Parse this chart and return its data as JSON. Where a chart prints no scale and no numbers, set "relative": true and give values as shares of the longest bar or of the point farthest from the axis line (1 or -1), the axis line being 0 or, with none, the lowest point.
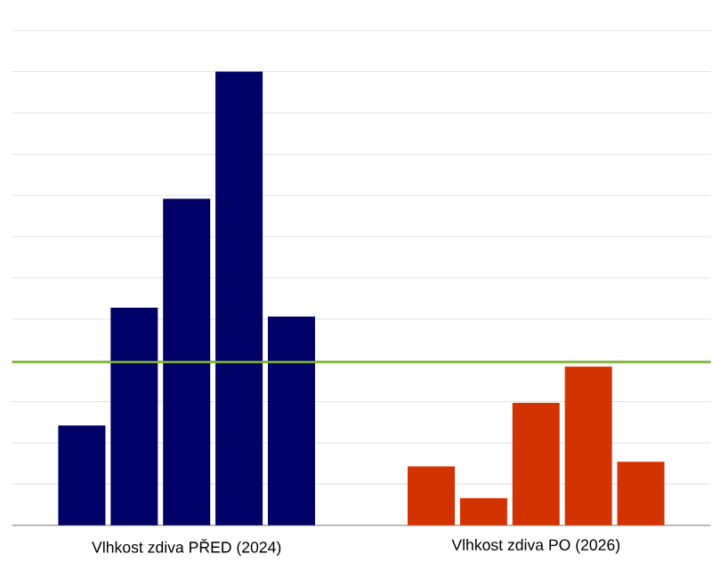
{
  "chart_data": {
    "type": "bar",
    "relative": true,
    "grid": "y",
    "categories": [
      "Vlhkost zdiva PŘED (2024)",
      "Vlhkost zdiva PO (2026)"
    ],
    "series": [
      {
        "colors": [
          "#000066",
          "#d33300"
        ],
        "values": [
          0.22,
          0.13
        ]
      },
      {
        "colors": [
          "#000066",
          "#d33300"
        ],
        "values": [
          0.48,
          0.06
        ]
      },
      {
        "colors": [
          "#000066",
          "#d33300"
        ],
        "values": [
          0.72,
          0.27
        ]
      },
      {
        "colors": [
          "#000066",
          "#d33300"
        ],
        "values": [
          1.0,
          0.35
        ]
      },
      {
        "colors": [
          "#000066",
          "#d33300"
        ],
        "values": [
          0.46,
          0.14
        ]
      }
    ],
    "ref_lines": [
      {
        "axis": "y",
        "value": 0.36,
        "color": "#7ab929"
      }
    ]
  }
}
